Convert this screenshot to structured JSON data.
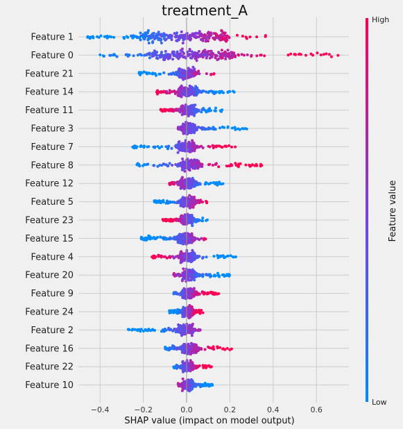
{
  "chart_data": {
    "type": "scatter",
    "subtype": "shap-beeswarm-summary",
    "title": "treatment_A",
    "xlabel": "SHAP value (impact on model output)",
    "xlim": [
      -0.5,
      0.75
    ],
    "xticks": [
      -0.4,
      -0.2,
      0.0,
      0.2,
      0.4,
      0.6
    ],
    "xtick_labels": [
      "−0.4",
      "−0.2",
      "0.0",
      "0.2",
      "0.4",
      "0.6"
    ],
    "grid": true,
    "colorbar": {
      "label": "Feature value",
      "high_label": "High",
      "low_label": "Low",
      "low_color": "#008bfb",
      "high_color": "#ff0052"
    },
    "features": [
      {
        "name": "Feature 1",
        "min": -0.46,
        "max": 0.37,
        "low_side": "left",
        "core": [
          -0.22,
          0.2
        ]
      },
      {
        "name": "Feature 0",
        "min": -0.4,
        "max": 0.7,
        "low_side": "left",
        "core": [
          -0.18,
          0.22
        ]
      },
      {
        "name": "Feature 21",
        "min": -0.22,
        "max": 0.13,
        "low_side": "left",
        "core": [
          -0.04,
          0.04
        ]
      },
      {
        "name": "Feature 14",
        "min": -0.14,
        "max": 0.23,
        "low_side": "right",
        "core": [
          -0.04,
          0.05
        ]
      },
      {
        "name": "Feature 11",
        "min": -0.12,
        "max": 0.17,
        "low_side": "right",
        "core": [
          -0.03,
          0.04
        ]
      },
      {
        "name": "Feature 3",
        "min": -0.04,
        "max": 0.28,
        "low_side": "right",
        "core": [
          -0.02,
          0.04
        ]
      },
      {
        "name": "Feature 7",
        "min": -0.25,
        "max": 0.24,
        "low_side": "left",
        "core": [
          -0.04,
          0.04
        ]
      },
      {
        "name": "Feature 8",
        "min": -0.23,
        "max": 0.35,
        "low_side": "left",
        "core": [
          -0.03,
          0.06
        ]
      },
      {
        "name": "Feature 12",
        "min": -0.08,
        "max": 0.17,
        "low_side": "right",
        "core": [
          -0.03,
          0.04
        ]
      },
      {
        "name": "Feature 5",
        "min": -0.15,
        "max": 0.1,
        "low_side": "left",
        "core": [
          -0.03,
          0.04
        ]
      },
      {
        "name": "Feature 23",
        "min": -0.11,
        "max": 0.1,
        "low_side": "right",
        "core": [
          -0.03,
          0.03
        ]
      },
      {
        "name": "Feature 15",
        "min": -0.21,
        "max": 0.09,
        "low_side": "left",
        "core": [
          -0.04,
          0.03
        ]
      },
      {
        "name": "Feature 4",
        "min": -0.16,
        "max": 0.24,
        "low_side": "right",
        "core": [
          -0.03,
          0.04
        ]
      },
      {
        "name": "Feature 20",
        "min": -0.06,
        "max": 0.2,
        "low_side": "right",
        "core": [
          -0.02,
          0.04
        ]
      },
      {
        "name": "Feature 9",
        "min": -0.06,
        "max": 0.15,
        "low_side": "left",
        "core": [
          -0.02,
          0.04
        ]
      },
      {
        "name": "Feature 24",
        "min": -0.08,
        "max": 0.08,
        "low_side": "left",
        "core": [
          -0.02,
          0.03
        ]
      },
      {
        "name": "Feature 2",
        "min": -0.27,
        "max": 0.07,
        "low_side": "left",
        "core": [
          -0.04,
          0.03
        ]
      },
      {
        "name": "Feature 16",
        "min": -0.1,
        "max": 0.21,
        "low_side": "left",
        "core": [
          -0.02,
          0.05
        ]
      },
      {
        "name": "Feature 22",
        "min": -0.06,
        "max": 0.12,
        "low_side": "left",
        "core": [
          -0.02,
          0.03
        ]
      },
      {
        "name": "Feature 10",
        "min": -0.04,
        "max": 0.12,
        "low_side": "right",
        "core": [
          -0.02,
          0.03
        ]
      }
    ]
  }
}
